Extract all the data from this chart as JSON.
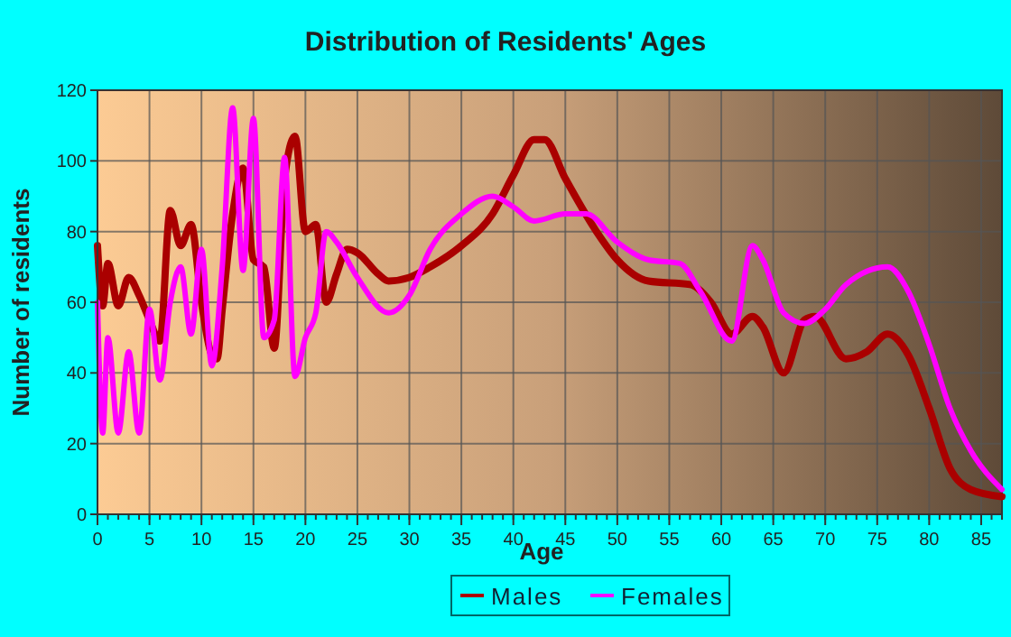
{
  "chart_data": {
    "type": "line",
    "title": "Distribution of Residents' Ages",
    "xlabel": "Age",
    "ylabel": "Number of residents",
    "xlim": [
      0,
      87
    ],
    "xticks": [
      0,
      5,
      10,
      15,
      20,
      25,
      30,
      35,
      40,
      45,
      50,
      55,
      60,
      65,
      70,
      75,
      80,
      85
    ],
    "ylim": [
      0,
      120
    ],
    "yticks": [
      0,
      20,
      40,
      60,
      80,
      100,
      120
    ],
    "grid": true,
    "legend": "bottom",
    "marker": "none",
    "line_style": "solid",
    "series": [
      {
        "name": "Males",
        "color": "#aa0000",
        "x": [
          0,
          0.5,
          1,
          2,
          3,
          4,
          5,
          6,
          7,
          8,
          9,
          10,
          11,
          11.5,
          12,
          13,
          14,
          15,
          16,
          17,
          18,
          19,
          20,
          21,
          22,
          23,
          24,
          25,
          27,
          28,
          30,
          32,
          35,
          38,
          40,
          42,
          43,
          45,
          48,
          50,
          53,
          57,
          59,
          61,
          63,
          64,
          66,
          68,
          69,
          72,
          74,
          76,
          78,
          80,
          82,
          84,
          87
        ],
        "values": [
          76,
          59,
          71,
          59,
          67,
          62,
          55,
          49,
          86,
          76,
          82,
          60,
          45,
          44,
          58,
          85,
          98,
          72,
          70,
          47,
          95,
          107,
          80,
          82,
          60,
          68,
          75,
          74,
          68,
          66,
          67,
          70,
          76,
          85,
          96,
          106,
          106,
          95,
          80,
          72,
          66,
          65,
          60,
          51,
          56,
          53,
          40,
          55,
          56,
          44,
          46,
          51,
          45,
          30,
          13,
          7,
          5
        ]
      },
      {
        "name": "Females",
        "color": "#ff00ff",
        "x": [
          0,
          0.5,
          1,
          2,
          3,
          4,
          5,
          6,
          7,
          8,
          9,
          10,
          11,
          12,
          13,
          14,
          15,
          16,
          17,
          18,
          19,
          20,
          21,
          22,
          23,
          25,
          28,
          30,
          32,
          35,
          38,
          40,
          42,
          45,
          47,
          50,
          53,
          56,
          58,
          61,
          63,
          64,
          66,
          68,
          70,
          72,
          76,
          78,
          80,
          82,
          84,
          87
        ],
        "values": [
          60,
          23,
          50,
          23,
          46,
          23,
          58,
          38,
          60,
          70,
          51,
          75,
          42,
          70,
          115,
          69,
          112,
          50,
          55,
          101,
          39,
          50,
          57,
          80,
          77,
          67,
          57,
          62,
          75,
          85,
          90,
          87,
          83,
          85,
          85,
          77,
          72,
          71,
          63,
          49,
          76,
          72,
          57,
          54,
          58,
          65,
          70,
          63,
          48,
          30,
          18,
          7
        ]
      }
    ]
  }
}
